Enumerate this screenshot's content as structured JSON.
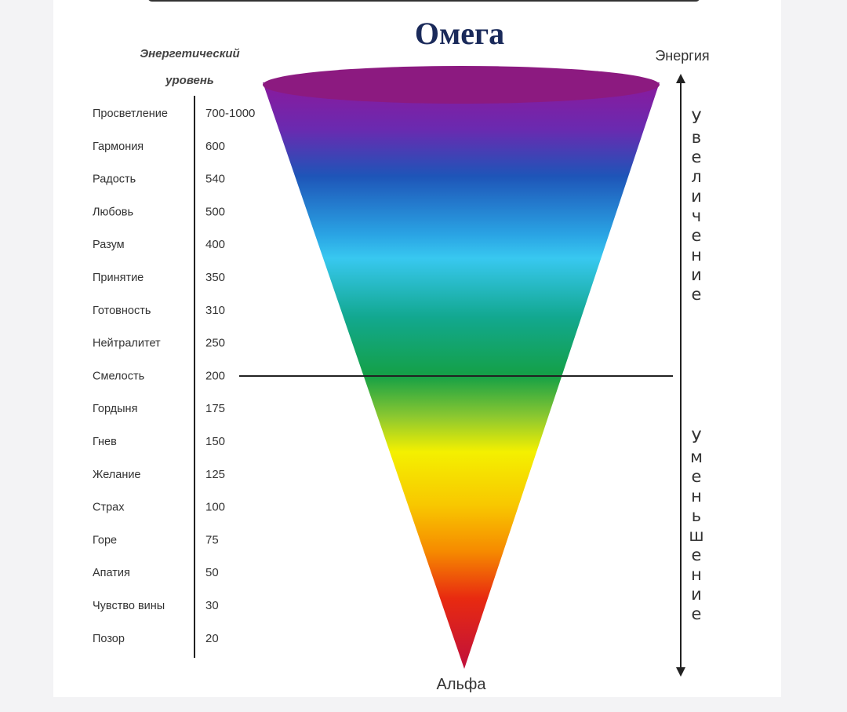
{
  "header": {
    "title": "Омега",
    "bottom": "Альфа",
    "column_header": [
      "Энергетический",
      "уровень"
    ],
    "energy": "Энергия",
    "increase": "Увеличение",
    "decrease": "Уменьшение"
  },
  "levels": [
    {
      "name": "Просветление",
      "value": "700-1000"
    },
    {
      "name": "Гармония",
      "value": "600"
    },
    {
      "name": "Радость",
      "value": "540"
    },
    {
      "name": "Любовь",
      "value": "500"
    },
    {
      "name": "Разум",
      "value": "400"
    },
    {
      "name": "Принятие",
      "value": "350"
    },
    {
      "name": "Готовность",
      "value": "310"
    },
    {
      "name": "Нейтралитет",
      "value": "250"
    },
    {
      "name": "Смелость",
      "value": "200"
    },
    {
      "name": "Гордыня",
      "value": "175"
    },
    {
      "name": "Гнев",
      "value": "150"
    },
    {
      "name": "Желание",
      "value": "125"
    },
    {
      "name": "Страх",
      "value": "100"
    },
    {
      "name": "Горе",
      "value": "75"
    },
    {
      "name": "Апатия",
      "value": "50"
    },
    {
      "name": "Чувство вины",
      "value": "30"
    },
    {
      "name": "Позор",
      "value": "20"
    }
  ]
}
